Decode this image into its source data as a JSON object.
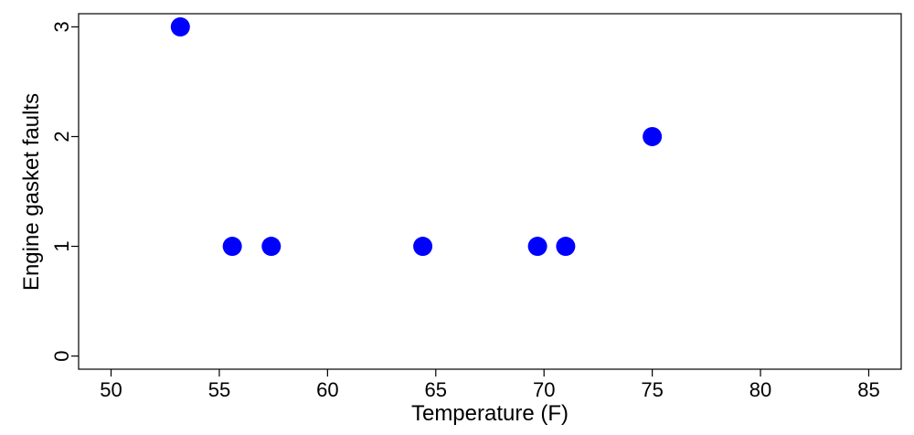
{
  "chart_data": {
    "type": "scatter",
    "title": "",
    "xlabel": "Temperature (F)",
    "ylabel": "Engine gasket faults",
    "xlim": [
      48.5,
      86.5
    ],
    "ylim": [
      -0.12,
      3.12
    ],
    "xticks": [
      50,
      55,
      60,
      65,
      70,
      75,
      80,
      85
    ],
    "yticks": [
      0,
      1,
      2,
      3
    ],
    "grid": false,
    "legend": "none",
    "point_color": "#0000ff",
    "points": [
      {
        "x": 53.2,
        "y": 3
      },
      {
        "x": 55.6,
        "y": 1
      },
      {
        "x": 57.4,
        "y": 1
      },
      {
        "x": 64.4,
        "y": 1
      },
      {
        "x": 69.7,
        "y": 1
      },
      {
        "x": 71.0,
        "y": 1
      },
      {
        "x": 75.0,
        "y": 2
      }
    ]
  }
}
